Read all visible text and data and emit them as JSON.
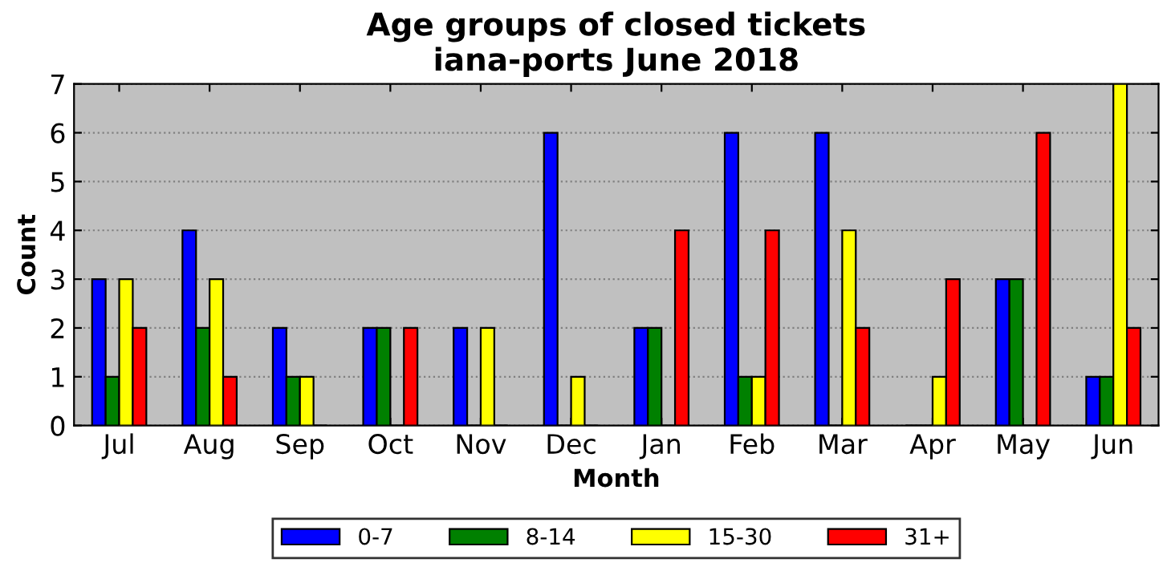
{
  "chart_data": {
    "type": "bar",
    "title": "Age groups of closed tickets\niana-ports June 2018",
    "xlabel": "Month",
    "ylabel": "Count",
    "categories": [
      "Jul",
      "Aug",
      "Sep",
      "Oct",
      "Nov",
      "Dec",
      "Jan",
      "Feb",
      "Mar",
      "Apr",
      "May",
      "Jun"
    ],
    "series": [
      {
        "name": "0-7",
        "color": "#0000ff",
        "values": [
          3,
          4,
          2,
          2,
          2,
          6,
          2,
          6,
          6,
          0,
          3,
          1
        ]
      },
      {
        "name": "8-14",
        "color": "#008000",
        "values": [
          1,
          2,
          1,
          2,
          0,
          0,
          2,
          1,
          0,
          0,
          3,
          1
        ]
      },
      {
        "name": "15-30",
        "color": "#ffff00",
        "values": [
          3,
          3,
          1,
          0,
          2,
          1,
          0,
          1,
          4,
          1,
          0,
          7
        ]
      },
      {
        "name": "31+",
        "color": "#ff0000",
        "values": [
          2,
          1,
          0,
          2,
          0,
          0,
          4,
          4,
          2,
          3,
          6,
          2
        ]
      }
    ],
    "ylim": [
      0,
      7
    ],
    "yticks": [
      0,
      1,
      2,
      3,
      4,
      5,
      6,
      7
    ],
    "grid": "y",
    "legend": "bottom"
  }
}
